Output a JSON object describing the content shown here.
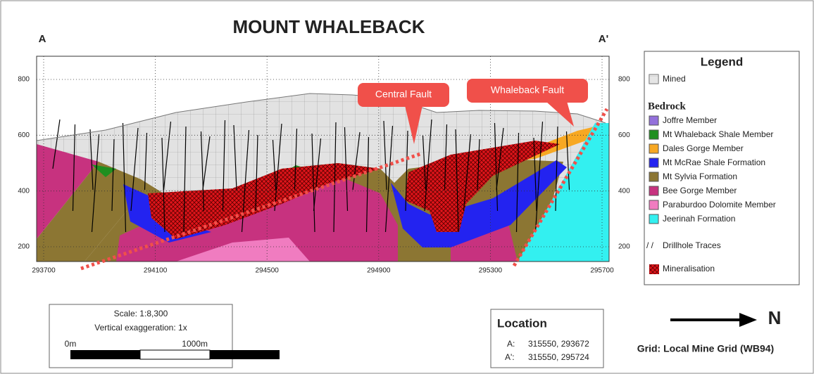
{
  "title": "MOUNT WHALEBACK",
  "section_ends": {
    "left": "A",
    "right": "A'"
  },
  "y_axis": {
    "ticks": [
      800,
      600,
      400,
      200
    ]
  },
  "x_axis": {
    "ticks": [
      293700,
      294100,
      294500,
      294900,
      295300,
      295700
    ]
  },
  "annotations": [
    "Central Fault",
    "Whaleback Fault"
  ],
  "legend": {
    "title": "Legend",
    "mined": "Mined",
    "bedrock_heading": "Bedrock",
    "bedrock": [
      {
        "label": "Joffre Member",
        "color": "#9370db"
      },
      {
        "label": "Mt Whaleback Shale Member",
        "color": "#1f8f1f"
      },
      {
        "label": "Dales Gorge Member",
        "color": "#f7a823"
      },
      {
        "label": "Mt McRae Shale Formation",
        "color": "#2323f0"
      },
      {
        "label": "Mt Sylvia Formation",
        "color": "#8c7633"
      },
      {
        "label": "Bee Gorge Member",
        "color": "#c7327f"
      },
      {
        "label": "Paraburdoo Dolomite Member",
        "color": "#f07cc0"
      },
      {
        "label": "Jeerinah Formation",
        "color": "#33f0f0"
      }
    ],
    "drillholes_symbol": "/ /",
    "drillholes": "Drillhole Traces",
    "mineralisation": "Mineralisation"
  },
  "scale": {
    "ratio": "Scale: 1:8,300",
    "exaggeration": "Vertical exaggeration: 1x",
    "start": "0m",
    "end": "1000m"
  },
  "location": {
    "title": "Location",
    "points": [
      {
        "label": "A:",
        "coords": "315550, 293672"
      },
      {
        "label": "A':",
        "coords": "315550, 295724"
      }
    ]
  },
  "north": "N",
  "grid": "Grid: Local Mine Grid (WB94)"
}
